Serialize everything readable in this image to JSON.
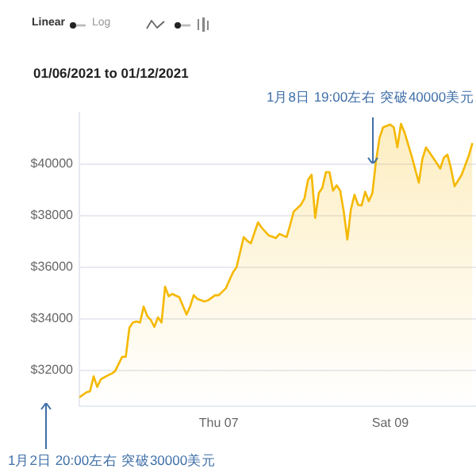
{
  "chart_data": {
    "type": "area",
    "subtitle": "01/06/2021 to 01/12/2021",
    "annotations": [
      "Linear",
      "Log",
      {
        "text": "1月8日 19:00左右 突破40000美元",
        "x": "2021-01-08T19:00",
        "y": 40000
      },
      "1月2日 20:00左右 突破30000美元"
    ],
    "xlim": [
      "2021-01-05T09:00",
      "2021-01-10T00:00"
    ],
    "xticks": [
      {
        "value": "2021-01-07T00:00",
        "label": "Thu 07"
      },
      {
        "value": "2021-01-09T00:00",
        "label": "Sat 09"
      }
    ],
    "ylim": [
      30600,
      42000
    ],
    "yticks": [
      {
        "value": 32000,
        "label": "$32000"
      },
      {
        "value": 34000,
        "label": "$34000"
      },
      {
        "value": 36000,
        "label": "$36000"
      },
      {
        "value": 38000,
        "label": "$38000"
      },
      {
        "value": 40000,
        "label": "$40000"
      }
    ],
    "grid": "y",
    "legend": false,
    "marker": "none",
    "line_style": "solid",
    "series": [
      {
        "color": "#f5b800",
        "x": [
          "2021-01-05T09:00",
          "2021-01-05T11:00",
          "2021-01-05T12:00",
          "2021-01-05T13:00",
          "2021-01-05T14:00",
          "2021-01-05T15:00",
          "2021-01-05T17:00",
          "2021-01-05T18:00",
          "2021-01-05T19:00",
          "2021-01-05T21:00",
          "2021-01-05T22:00",
          "2021-01-05T23:00",
          "2021-01-06T00:00",
          "2021-01-06T01:00",
          "2021-01-06T02:00",
          "2021-01-06T03:00",
          "2021-01-06T04:00",
          "2021-01-06T05:00",
          "2021-01-06T06:00",
          "2021-01-06T07:00",
          "2021-01-06T08:00",
          "2021-01-06T09:00",
          "2021-01-06T10:00",
          "2021-01-06T11:00",
          "2021-01-06T13:00",
          "2021-01-06T15:00",
          "2021-01-06T16:00",
          "2021-01-06T17:00",
          "2021-01-06T18:00",
          "2021-01-06T20:00",
          "2021-01-06T21:00",
          "2021-01-06T23:00",
          "2021-01-07T00:00",
          "2021-01-07T02:00",
          "2021-01-07T03:00",
          "2021-01-07T04:00",
          "2021-01-07T05:00",
          "2021-01-07T07:00",
          "2021-01-07T08:00",
          "2021-01-07T09:00",
          "2021-01-07T11:00",
          "2021-01-07T12:00",
          "2021-01-07T14:00",
          "2021-01-07T16:00",
          "2021-01-07T17:00",
          "2021-01-07T19:00",
          "2021-01-07T20:00",
          "2021-01-07T21:00",
          "2021-01-07T23:00",
          "2021-01-08T00:00",
          "2021-01-08T01:00",
          "2021-01-08T02:00",
          "2021-01-08T03:00",
          "2021-01-08T04:00",
          "2021-01-08T05:00",
          "2021-01-08T06:00",
          "2021-01-08T07:00",
          "2021-01-08T08:00",
          "2021-01-08T09:00",
          "2021-01-08T10:00",
          "2021-01-08T11:00",
          "2021-01-08T12:00",
          "2021-01-08T13:00",
          "2021-01-08T14:00",
          "2021-01-08T15:00",
          "2021-01-08T16:00",
          "2021-01-08T17:00",
          "2021-01-08T18:00",
          "2021-01-08T19:00",
          "2021-01-08T20:00",
          "2021-01-08T21:00",
          "2021-01-08T22:00",
          "2021-01-09T00:00",
          "2021-01-09T01:00",
          "2021-01-09T02:00",
          "2021-01-09T03:00",
          "2021-01-09T04:00",
          "2021-01-09T06:00",
          "2021-01-09T08:00",
          "2021-01-09T09:00",
          "2021-01-09T10:00",
          "2021-01-09T12:00",
          "2021-01-09T14:00",
          "2021-01-09T15:00",
          "2021-01-09T16:00",
          "2021-01-09T17:00",
          "2021-01-09T18:00",
          "2021-01-09T20:00",
          "2021-01-09T22:00",
          "2021-01-09T23:00"
        ],
        "values": [
          30940,
          31140,
          31180,
          31760,
          31350,
          31640,
          31800,
          31860,
          31960,
          32520,
          32520,
          33640,
          33850,
          33890,
          33850,
          34470,
          34100,
          33950,
          33680,
          34050,
          33850,
          35240,
          34870,
          34960,
          34830,
          34160,
          34470,
          34910,
          34770,
          34670,
          34710,
          34910,
          34910,
          35180,
          35490,
          35800,
          36000,
          37170,
          37020,
          36930,
          37740,
          37540,
          37230,
          37130,
          37290,
          37170,
          37640,
          38160,
          38420,
          38670,
          39390,
          39590,
          37910,
          38870,
          39080,
          39690,
          39690,
          38970,
          39180,
          38970,
          38150,
          37070,
          38250,
          38810,
          38420,
          38400,
          38930,
          38560,
          38870,
          40100,
          41020,
          41430,
          41540,
          41430,
          40650,
          41570,
          41230,
          40310,
          39280,
          40200,
          40650,
          40250,
          39830,
          40250,
          40370,
          39830,
          39140,
          39590,
          40340,
          40820
        ]
      }
    ]
  }
}
